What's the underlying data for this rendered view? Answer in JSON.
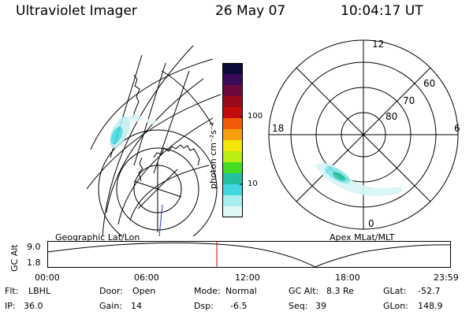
{
  "header": {
    "title": "Ultraviolet Imager",
    "date": "26 May 07",
    "time": "10:04:17 UT"
  },
  "colorbar": {
    "label": "photon cm⁻²s⁻¹",
    "ticks": [
      "100",
      "10"
    ],
    "colors": [
      "#0b0b3a",
      "#3a0a5a",
      "#6a0a3a",
      "#9a0a1a",
      "#c40c0c",
      "#f05a0a",
      "#f5a00a",
      "#f5e60a",
      "#b8ee10",
      "#44dd22",
      "#22c0a0",
      "#3fd8e0",
      "#a8eef0",
      "#dff7f8"
    ]
  },
  "polar": {
    "labels": [
      "12",
      "60",
      "70",
      "80",
      "18",
      "6",
      "0"
    ]
  },
  "lower": {
    "left_header": "Geographic Lat/Lon",
    "right_header": "Apex MLat/MLT",
    "y_axis_label": "GC Alt",
    "y_ticks": [
      "9.0",
      "1.8"
    ],
    "x_ticks": [
      "00:00",
      "06:00",
      "12:00",
      "18:00",
      "23:59"
    ],
    "current_time_fraction": 0.42
  },
  "info": {
    "row1": [
      {
        "label": "Flt:",
        "value": "LBHL"
      },
      {
        "label": "Door:",
        "value": "Open"
      },
      {
        "label": "Mode:",
        "value": "Normal"
      },
      {
        "label": "GC Alt:",
        "value": "8.3 Re"
      },
      {
        "label": "GLat:",
        "value": "-52.7"
      }
    ],
    "row2": [
      {
        "label": "IP:",
        "value": "36.0"
      },
      {
        "label": "Gain:",
        "value": "14"
      },
      {
        "label": "Dsp:",
        "value": "-6.5"
      },
      {
        "label": "Seq:",
        "value": "39"
      },
      {
        "label": "GLon:",
        "value": "148.9"
      }
    ]
  }
}
